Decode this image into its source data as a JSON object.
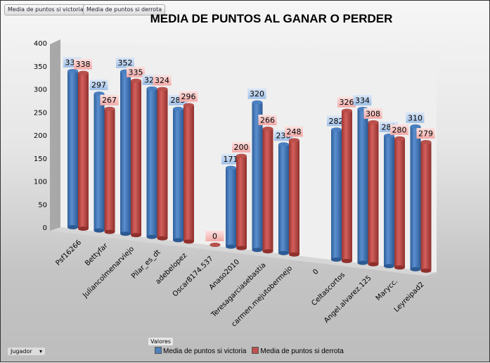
{
  "tabs": [
    "Media de puntos si victoria",
    "Media de puntos si derrota"
  ],
  "chart_data": {
    "type": "bar",
    "title": "MEDIA DE PUNTOS AL GANAR O PERDER",
    "categories": [
      "Psf16266",
      "Bettyfar",
      "Juliancolmenarviejo",
      "Pilar_es_dt",
      "adebelopez",
      "Oscar8174.537",
      "Anaso2010",
      "Teresagarciasebastia",
      "carmen.mejutobermejo",
      "0",
      "Celtascortos",
      "Angel.alvarez.125",
      "Marycc.",
      "Leyreipad2"
    ],
    "series": [
      {
        "name": "Media de puntos si victoria",
        "color": "#4f81bd",
        "values": [
          339,
          297,
          352,
          322,
          285,
          null,
          171,
          320,
          236,
          null,
          282,
          334,
          283,
          310
        ]
      },
      {
        "name": "Media de puntos si derrota",
        "color": "#c0504d",
        "values": [
          338,
          267,
          335,
          324,
          296,
          0,
          200,
          266,
          248,
          null,
          326,
          308,
          280,
          279
        ]
      }
    ],
    "yticks": [
      0,
      50,
      100,
      150,
      200,
      250,
      300,
      350,
      400
    ],
    "ylim": [
      0,
      400
    ],
    "legend": "bottom",
    "values_label": "Valores",
    "filter_label": "Jugador"
  }
}
